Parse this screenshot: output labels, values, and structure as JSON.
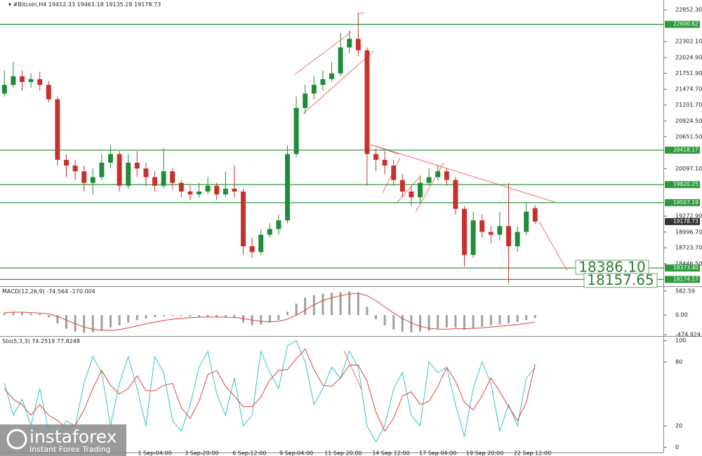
{
  "chart_data": [
    {
      "type": "candlestick",
      "symbol": "#Bitcoin,H4",
      "open": [
        21400,
        21550,
        21700,
        21600,
        21650,
        21550,
        21300,
        20250,
        20150,
        20050,
        19850,
        19950,
        20200,
        20350,
        19800,
        20200,
        20100,
        19950,
        19800,
        20050,
        19850,
        19700,
        19650,
        19700,
        19800,
        19650,
        19750,
        19700,
        18750,
        18650,
        18950,
        19050,
        19200,
        20350,
        21150,
        21400,
        21550,
        21650,
        21750,
        22200,
        22350,
        22150,
        20350,
        20250,
        20150,
        19900,
        19700,
        19600,
        19850,
        19950,
        20050,
        19900,
        19400,
        18600,
        19200,
        19000,
        18950,
        19100,
        18750,
        19000,
        19412.33
      ],
      "high": [
        21800,
        21950,
        21800,
        21750,
        21780,
        21620,
        21350,
        20350,
        20250,
        20150,
        20100,
        20350,
        20500,
        20400,
        20350,
        20400,
        20200,
        20050,
        20450,
        20100,
        19900,
        19800,
        19850,
        19950,
        19850,
        20050,
        20150,
        19750,
        18900,
        19050,
        19150,
        19300,
        20500,
        21350,
        21550,
        21700,
        21800,
        21950,
        22450,
        22500,
        22800,
        22200,
        20450,
        20400,
        20250,
        20000,
        19800,
        19950,
        20100,
        20150,
        20100,
        19950,
        19450,
        19350,
        19300,
        19100,
        19350,
        19850,
        19100,
        19500,
        19461.18
      ],
      "low": [
        21350,
        21500,
        21450,
        21500,
        21450,
        21250,
        20150,
        19950,
        19900,
        19700,
        19650,
        19900,
        20100,
        19700,
        19750,
        19950,
        19800,
        19700,
        19750,
        19750,
        19600,
        19550,
        19600,
        19650,
        19550,
        19600,
        19600,
        18600,
        18550,
        18600,
        18900,
        18950,
        19150,
        20300,
        21050,
        21300,
        21450,
        21600,
        21700,
        22100,
        22050,
        19800,
        20050,
        20000,
        19800,
        19600,
        19450,
        19500,
        19800,
        19900,
        19800,
        19300,
        18400,
        18550,
        18900,
        18800,
        18850,
        18100,
        18650,
        18950,
        19135.28
      ],
      "close": [
        21550,
        21700,
        21600,
        21650,
        21550,
        21300,
        20250,
        20150,
        20050,
        19850,
        19950,
        20200,
        20350,
        19800,
        20200,
        20100,
        19950,
        19800,
        20050,
        19850,
        19700,
        19650,
        19700,
        19800,
        19650,
        19750,
        19700,
        18750,
        18650,
        18950,
        19050,
        19200,
        20350,
        21150,
        21400,
        21550,
        21650,
        21750,
        22200,
        22350,
        22150,
        20350,
        20250,
        20150,
        19900,
        19700,
        19600,
        19850,
        19950,
        20050,
        19900,
        19400,
        18600,
        19200,
        19000,
        18950,
        19100,
        18750,
        19000,
        19350,
        19178.73
      ],
      "up_color": "#1e8c3a",
      "down_color": "#c9302c",
      "level_color": "#2e9a3e",
      "levels": [
        22600.62,
        20418.17,
        19820.25,
        19507.19,
        {
          "value": 18373.4,
          "label": "18373.40"
        },
        18174.57
      ],
      "annotations": [
        {
          "value": 18386.1,
          "label": "18386.10"
        },
        18157.65
      ],
      "ylim": [
        18057,
        23023
      ],
      "yticks": [
        {
          "value": 22852.3,
          "label": "22852.30"
        },
        {
          "value": 22302.1,
          "label": "22302.10"
        },
        {
          "value": 22024.9,
          "label": "22024.90"
        },
        {
          "value": 21751.9,
          "label": "21751.90"
        },
        {
          "value": 21474.7,
          "label": "21474.70"
        },
        {
          "value": 21201.7,
          "label": "21201.70"
        },
        {
          "value": 20924.5,
          "label": "20924.50"
        },
        {
          "value": 20651.5,
          "label": "20651.50"
        },
        {
          "value": 20097.1,
          "label": "20097.10"
        },
        {
          "value": 19272.9,
          "label": "19272.90"
        },
        {
          "value": 18996.7,
          "label": "18996.70"
        },
        {
          "value": 18723.7,
          "label": "18723.70"
        },
        {
          "value": 18446.5,
          "label": "18446.50"
        }
      ],
      "xlim": [
        -0.5,
        74.5
      ],
      "xticks": [
        {
          "value": 17,
          "label": "1 Sep 04:00"
        },
        {
          "value": 22.3,
          "label": "3 Sep 20:00"
        },
        {
          "value": 27.7,
          "label": "6 Sep 12:00"
        },
        {
          "value": 33,
          "label": "9 Sep 04:00"
        },
        {
          "value": 38.3,
          "label": "11 Sep 20:00"
        },
        {
          "value": 43.7,
          "label": "14 Sep 12:00"
        },
        {
          "value": 49,
          "label": "17 Sep 04:00"
        },
        {
          "value": 54.3,
          "label": "19 Sep 20:00"
        },
        {
          "value": 59.7,
          "label": "22 Sep 12:00"
        }
      ]
    },
    {
      "type": "macd",
      "title": "MACD(12,26,9)",
      "histogram": [
        50,
        80,
        60,
        40,
        30,
        -50,
        -200,
        -330,
        -400,
        -430,
        -420,
        -380,
        -300,
        -250,
        -180,
        -120,
        -80,
        -50,
        -30,
        -20,
        -20,
        -30,
        -40,
        -40,
        -50,
        -60,
        -70,
        -180,
        -250,
        -230,
        -180,
        -120,
        80,
        280,
        420,
        480,
        520,
        540,
        560,
        570,
        550,
        200,
        -100,
        -250,
        -350,
        -400,
        -420,
        -400,
        -380,
        -330,
        -300,
        -300,
        -350,
        -320,
        -280,
        -250,
        -230,
        -200,
        -170,
        -120,
        -74.564
      ],
      "signal": [
        60,
        70,
        70,
        60,
        50,
        30,
        -30,
        -120,
        -210,
        -290,
        -340,
        -370,
        -370,
        -350,
        -310,
        -260,
        -210,
        -170,
        -130,
        -100,
        -80,
        -60,
        -50,
        -45,
        -45,
        -50,
        -55,
        -80,
        -120,
        -150,
        -160,
        -150,
        -100,
        0,
        120,
        250,
        350,
        420,
        470,
        510,
        530,
        470,
        350,
        200,
        50,
        -80,
        -190,
        -270,
        -320,
        -340,
        -340,
        -330,
        -330,
        -320,
        -310,
        -290,
        -270,
        -250,
        -230,
        -200,
        -170.004
      ],
      "histogram_color": "#a0a0a0",
      "signal_color": "#e0403a",
      "ylim": [
        -490,
        665
      ],
      "yticks": [
        582.59,
        {
          "value": 0,
          "label": "0.00"
        },
        -474.924
      ]
    },
    {
      "type": "line",
      "title": "Sto(5,3,3)",
      "series": [
        {
          "color": "#33c3c9",
          "values": [
            60,
            30,
            45,
            20,
            55,
            15,
            10,
            25,
            20,
            60,
            85,
            70,
            20,
            60,
            85,
            55,
            20,
            85,
            70,
            25,
            15,
            40,
            75,
            90,
            50,
            30,
            65,
            20,
            30,
            90,
            70,
            55,
            95,
            100,
            80,
            40,
            55,
            75,
            65,
            90,
            75,
            20,
            5,
            20,
            55,
            70,
            30,
            20,
            80,
            70,
            75,
            40,
            10,
            55,
            80,
            60,
            15,
            40,
            20,
            65,
            74.2519
          ]
        },
        {
          "color": "#e0403a",
          "values": [
            55,
            45,
            40,
            30,
            40,
            30,
            25,
            18,
            20,
            35,
            55,
            72,
            58,
            50,
            55,
            67,
            53,
            53,
            58,
            60,
            37,
            27,
            43,
            68,
            72,
            57,
            48,
            38,
            38,
            47,
            63,
            72,
            73,
            83,
            92,
            73,
            58,
            57,
            65,
            77,
            77,
            62,
            33,
            15,
            27,
            48,
            52,
            40,
            43,
            57,
            75,
            62,
            42,
            35,
            48,
            65,
            52,
            38,
            25,
            42,
            77.8248
          ]
        }
      ],
      "ylim": [
        -5,
        103
      ],
      "yticks": [
        100,
        80,
        20,
        0
      ]
    }
  ],
  "logo": {
    "name": "instaforex",
    "tagline": "Instant Forex Trading"
  }
}
